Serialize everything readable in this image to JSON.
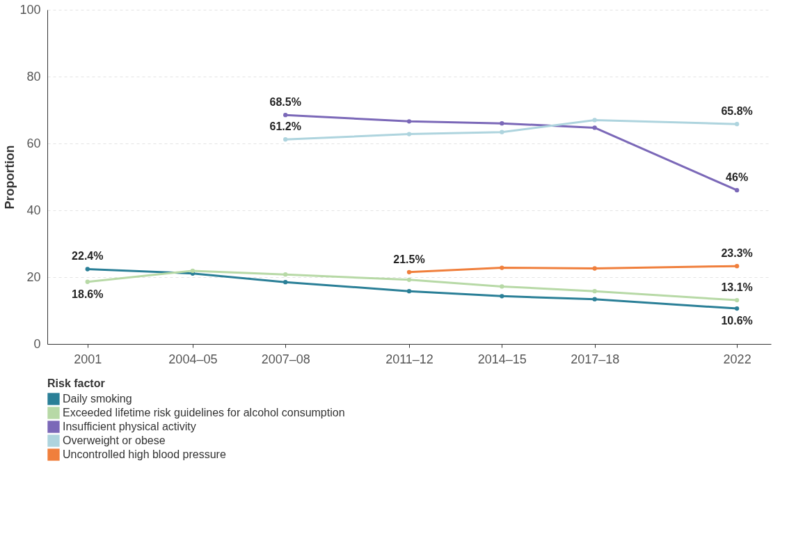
{
  "chart_data": {
    "type": "line",
    "ylabel": "Proportion",
    "legend_title": "Risk factor",
    "legend": "bottom",
    "grid": "y",
    "marker": "circle",
    "line_style": "solid",
    "xlim": [
      1999.7,
      2023.1
    ],
    "xticks": [
      {
        "value": 2001,
        "label": "2001"
      },
      {
        "value": 2004.4,
        "label": "2004–05"
      },
      {
        "value": 2007.4,
        "label": "2007–08"
      },
      {
        "value": 2011.4,
        "label": "2011–12"
      },
      {
        "value": 2014.4,
        "label": "2014–15"
      },
      {
        "value": 2017.4,
        "label": "2017–18"
      },
      {
        "value": 2022,
        "label": "2022"
      }
    ],
    "ylim": [
      0,
      100
    ],
    "yticks": [
      0,
      20,
      40,
      60,
      80,
      100
    ],
    "series": [
      {
        "name": "Daily smoking",
        "color": "#2a7f97",
        "x": [
          2001,
          2004.4,
          2007.4,
          2011.4,
          2014.4,
          2017.4,
          2022
        ],
        "values": [
          22.4,
          21.1,
          18.5,
          15.8,
          14.3,
          13.4,
          10.6
        ],
        "value_labels": [
          "22.4%",
          null,
          null,
          null,
          null,
          null,
          "10.6%"
        ]
      },
      {
        "name": "Exceeded lifetime risk guidelines for alcohol consumption",
        "color": "#b7d9a6",
        "x": [
          2001,
          2004.4,
          2007.4,
          2011.4,
          2014.4,
          2017.4,
          2022
        ],
        "values": [
          18.6,
          21.9,
          20.8,
          19.2,
          17.2,
          15.8,
          13.1
        ],
        "value_labels": [
          "18.6%",
          null,
          null,
          null,
          null,
          null,
          "13.1%"
        ]
      },
      {
        "name": "Insufficient physical activity",
        "color": "#7b68b8",
        "x": [
          2007.4,
          2011.4,
          2014.4,
          2017.4,
          2022
        ],
        "values": [
          68.5,
          66.6,
          66.0,
          64.7,
          46
        ],
        "value_labels": [
          "68.5%",
          null,
          null,
          null,
          "46%"
        ]
      },
      {
        "name": "Overweight or obese",
        "color": "#aed4de",
        "x": [
          2007.4,
          2011.4,
          2014.4,
          2017.4,
          2022
        ],
        "values": [
          61.2,
          62.8,
          63.4,
          67.0,
          65.8
        ],
        "value_labels": [
          "61.2%",
          null,
          null,
          null,
          "65.8%"
        ]
      },
      {
        "name": "Uncontrolled high blood pressure",
        "color": "#f07f3c",
        "x": [
          2011.4,
          2014.4,
          2017.4,
          2022
        ],
        "values": [
          21.5,
          22.8,
          22.6,
          23.3
        ],
        "value_labels": [
          "21.5%",
          null,
          null,
          "23.3%"
        ]
      }
    ]
  }
}
